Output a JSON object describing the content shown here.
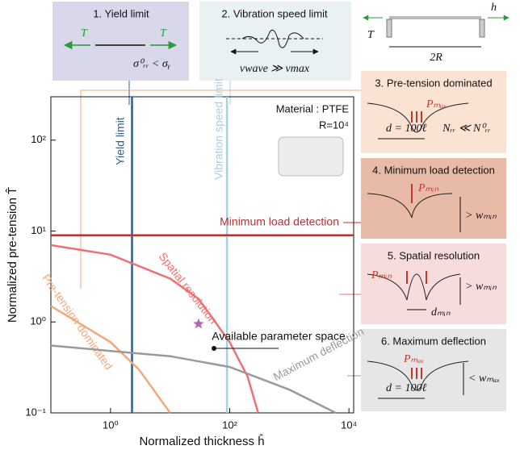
{
  "chart_data": {
    "type": "line",
    "x_label": "Normalized thickness ĥ",
    "y_label": "Normalized pre-tension T̂",
    "log_x": true,
    "log_y": true,
    "xlim": [
      0.1,
      12000
    ],
    "ylim": [
      0.1,
      300
    ],
    "xticks": [
      {
        "value": 1,
        "label": "10⁰"
      },
      {
        "value": 100,
        "label": "10²"
      },
      {
        "value": 10000,
        "label": "10⁴"
      }
    ],
    "yticks": [
      {
        "value": 0.1,
        "label": "10⁻¹"
      },
      {
        "value": 1,
        "label": "10⁰"
      },
      {
        "value": 10,
        "label": "10¹"
      },
      {
        "value": 100,
        "label": "10²"
      }
    ],
    "series": [
      {
        "name": "Yield limit",
        "color": "#2f5d8c",
        "x": [
          2.3,
          2.3
        ],
        "y": [
          0.1,
          300
        ]
      },
      {
        "name": "Vibration speed limit",
        "color": "#a9d0df",
        "x": [
          90,
          90
        ],
        "y": [
          0.1,
          300
        ]
      },
      {
        "name": "Minimum load detection",
        "color": "#b83232",
        "x": [
          0.1,
          12000
        ],
        "y": [
          9,
          9
        ]
      },
      {
        "name": "Spatial resolution",
        "color": "#ef7070",
        "x": [
          0.1,
          1,
          10,
          30,
          100,
          200,
          300
        ],
        "y": [
          7,
          5.5,
          3,
          1.8,
          0.6,
          0.25,
          0.1
        ]
      },
      {
        "name": "Pre-tension dominated",
        "color": "#f4a77a",
        "x": [
          0.1,
          1,
          3,
          10
        ],
        "y": [
          1.5,
          0.6,
          0.3,
          0.1
        ]
      },
      {
        "name": "Maximum deflection",
        "color": "#9a9a9a",
        "x": [
          0.1,
          1,
          10,
          100,
          1000,
          6000
        ],
        "y": [
          0.55,
          0.48,
          0.42,
          0.32,
          0.18,
          0.1
        ]
      }
    ],
    "highlight_point": {
      "x": 30,
      "y": 0.95,
      "color": "#b565b5"
    },
    "annotations": [
      "Available parameter space",
      "Material : PTFE",
      "R=10⁴"
    ]
  },
  "panels": [
    {
      "title": "1. Yield limit",
      "labels": [
        "T",
        "T",
        "σ⁰ᵣᵣ < σᵧ"
      ]
    },
    {
      "title": "2. Vibration speed limit",
      "labels": [
        "vwave ≫ vmax"
      ]
    },
    {
      "title": "3. Pre-tension dominated",
      "labels": [
        "Pₘₐₓ",
        "d = 100ℓ",
        "Nᵣᵣ ≪ N⁰ᵣᵣ"
      ]
    },
    {
      "title": "4. Minimum load detection",
      "labels": [
        "Pₘᵢₙ",
        "> wₘᵢₙ"
      ]
    },
    {
      "title": "5. Spatial resolution",
      "labels": [
        "Pₘᵢₙ",
        "> wₘᵢₙ",
        "dₘᵢₙ"
      ]
    },
    {
      "title": "6. Maximum deflection",
      "labels": [
        "Pₘₐₓ",
        "d = 100ℓ",
        "< wₘₐₓ"
      ]
    }
  ],
  "diagram_labels": [
    "T",
    "h",
    "2R"
  ]
}
